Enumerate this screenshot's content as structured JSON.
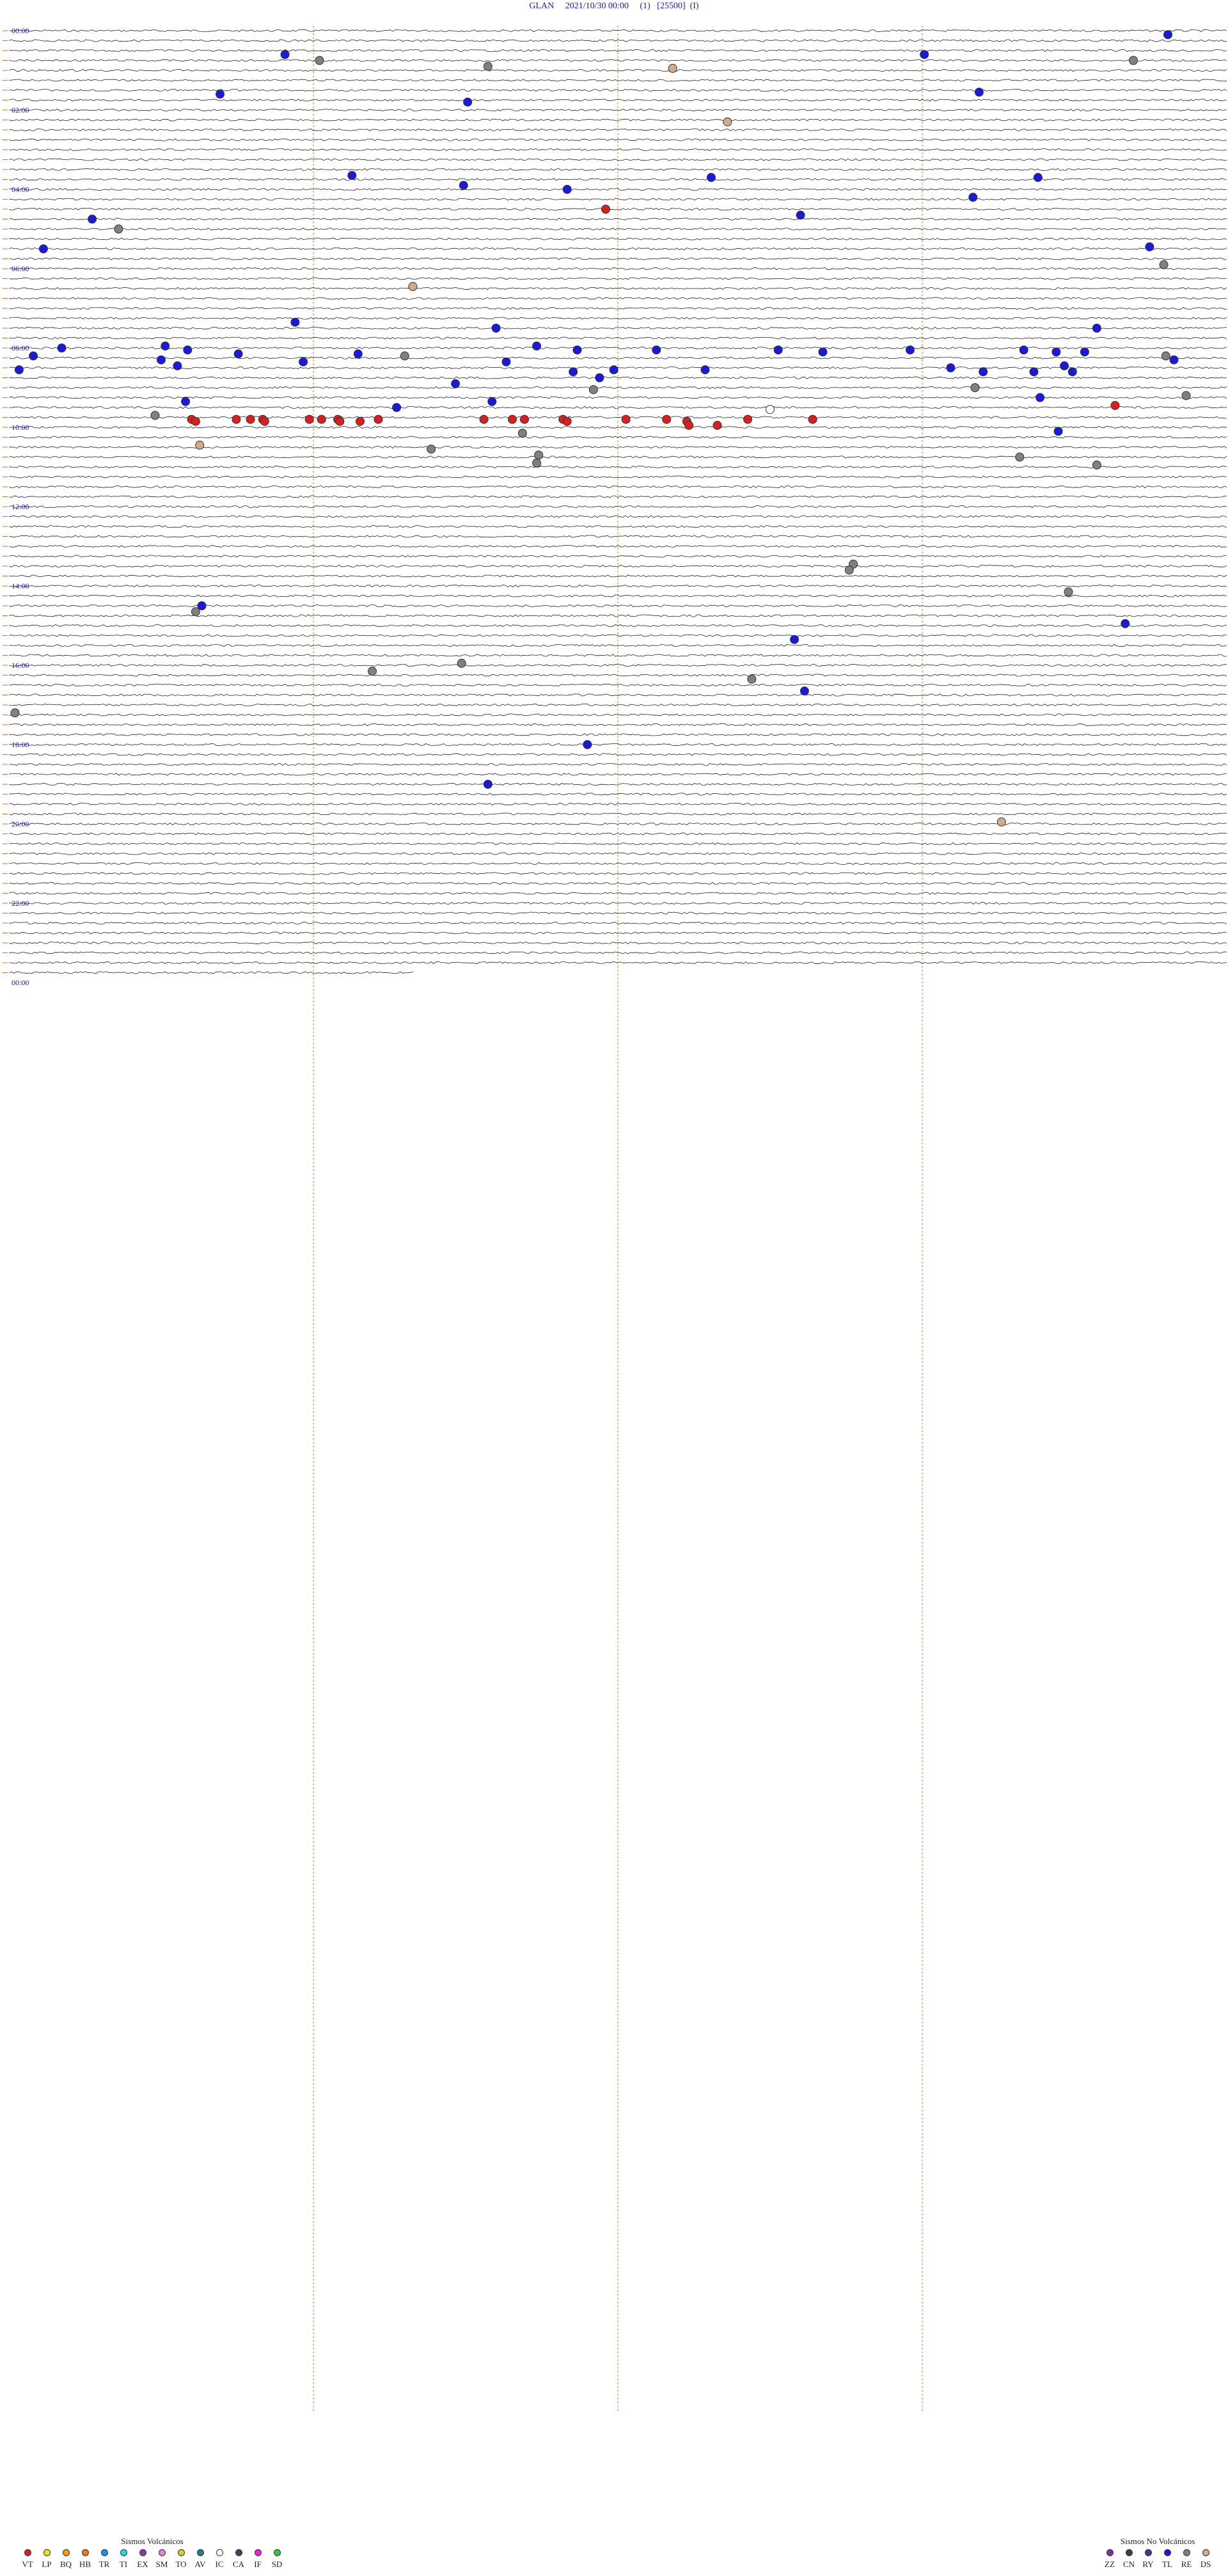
{
  "header": {
    "station": "GLAN",
    "datetime": "2021/10/30 00:00",
    "p1": "(1)",
    "gain": "[25500]",
    "p2": "(I)"
  },
  "chart_data": {
    "type": "scatter",
    "description_type": "helicorder",
    "hour_labels": [
      "00:00",
      "02:00",
      "04:00",
      "06:00",
      "08:00",
      "10:00",
      "12:00",
      "14:00",
      "16:00",
      "18:00",
      "20:00",
      "22:00",
      "00:00"
    ],
    "events": [
      {
        "hour": 0.1,
        "minute": 57.1,
        "color": "#1a1ad8"
      },
      {
        "hour": 0.6,
        "minute": 45.1,
        "color": "#1a1ad8"
      },
      {
        "hour": 0.6,
        "minute": 13.6,
        "color": "#1a1ad8"
      },
      {
        "hour": 0.75,
        "minute": 15.3,
        "color": "#808080"
      },
      {
        "hour": 0.75,
        "minute": 55.4,
        "color": "#808080"
      },
      {
        "hour": 0.9,
        "minute": 23.6,
        "color": "#808080"
      },
      {
        "hour": 0.95,
        "minute": 32.7,
        "color": "#d2aa8c"
      },
      {
        "hour": 1.6,
        "minute": 10.4,
        "color": "#1a1ad8"
      },
      {
        "hour": 1.55,
        "minute": 47.8,
        "color": "#1a1ad8"
      },
      {
        "hour": 1.8,
        "minute": 22.6,
        "color": "#1a1ad8"
      },
      {
        "hour": 2.3,
        "minute": 35.4,
        "color": "#d2aa8c"
      },
      {
        "hour": 3.65,
        "minute": 16.9,
        "color": "#1a1ad8"
      },
      {
        "hour": 3.7,
        "minute": 34.6,
        "color": "#1a1ad8"
      },
      {
        "hour": 3.7,
        "minute": 50.7,
        "color": "#1a1ad8"
      },
      {
        "hour": 3.9,
        "minute": 22.4,
        "color": "#1a1ad8"
      },
      {
        "hour": 4.0,
        "minute": 27.5,
        "color": "#1a1ad8"
      },
      {
        "hour": 4.2,
        "minute": 47.5,
        "color": "#1a1ad8"
      },
      {
        "hour": 4.5,
        "minute": 29.4,
        "color": "#d82020"
      },
      {
        "hour": 4.65,
        "minute": 39.0,
        "color": "#1a1ad8"
      },
      {
        "hour": 4.75,
        "minute": 4.1,
        "color": "#1a1ad8"
      },
      {
        "hour": 5.0,
        "minute": 5.4,
        "color": "#808080"
      },
      {
        "hour": 5.5,
        "minute": 1.7,
        "color": "#1a1ad8"
      },
      {
        "hour": 5.45,
        "minute": 56.2,
        "color": "#1a1ad8"
      },
      {
        "hour": 5.9,
        "minute": 56.9,
        "color": "#808080"
      },
      {
        "hour": 6.45,
        "minute": 19.9,
        "color": "#d2aa8c"
      },
      {
        "hour": 7.35,
        "minute": 14.1,
        "color": "#1a1ad8"
      },
      {
        "hour": 7.5,
        "minute": 24.0,
        "color": "#1a1ad8"
      },
      {
        "hour": 7.5,
        "minute": 53.6,
        "color": "#1a1ad8"
      },
      {
        "hour": 7.95,
        "minute": 7.7,
        "color": "#1a1ad8"
      },
      {
        "hour": 7.95,
        "minute": 26.0,
        "color": "#1a1ad8"
      },
      {
        "hour": 8.0,
        "minute": 2.6,
        "color": "#1a1ad8"
      },
      {
        "hour": 8.05,
        "minute": 8.8,
        "color": "#1a1ad8"
      },
      {
        "hour": 8.05,
        "minute": 28.0,
        "color": "#1a1ad8"
      },
      {
        "hour": 8.05,
        "minute": 31.9,
        "color": "#1a1ad8"
      },
      {
        "hour": 8.05,
        "minute": 37.9,
        "color": "#1a1ad8"
      },
      {
        "hour": 8.05,
        "minute": 44.4,
        "color": "#1a1ad8"
      },
      {
        "hour": 8.05,
        "minute": 50.0,
        "color": "#1a1ad8"
      },
      {
        "hour": 8.1,
        "minute": 40.1,
        "color": "#1a1ad8"
      },
      {
        "hour": 8.1,
        "minute": 51.6,
        "color": "#1a1ad8"
      },
      {
        "hour": 8.1,
        "minute": 53.0,
        "color": "#1a1ad8"
      },
      {
        "hour": 8.15,
        "minute": 11.3,
        "color": "#1a1ad8"
      },
      {
        "hour": 8.15,
        "minute": 17.2,
        "color": "#1a1ad8"
      },
      {
        "hour": 8.2,
        "minute": 1.2,
        "color": "#1a1ad8"
      },
      {
        "hour": 8.2,
        "minute": 19.5,
        "color": "#808080"
      },
      {
        "hour": 8.2,
        "minute": 57.0,
        "color": "#808080"
      },
      {
        "hour": 8.3,
        "minute": 7.5,
        "color": "#1a1ad8"
      },
      {
        "hour": 8.3,
        "minute": 57.4,
        "color": "#1a1ad8"
      },
      {
        "hour": 8.35,
        "minute": 14.5,
        "color": "#1a1ad8"
      },
      {
        "hour": 8.35,
        "minute": 24.5,
        "color": "#1a1ad8"
      },
      {
        "hour": 8.45,
        "minute": 8.3,
        "color": "#1a1ad8"
      },
      {
        "hour": 8.45,
        "minute": 52.0,
        "color": "#1a1ad8"
      },
      {
        "hour": 8.5,
        "minute": 46.4,
        "color": "#1a1ad8"
      },
      {
        "hour": 8.55,
        "minute": 0.5,
        "color": "#1a1ad8"
      },
      {
        "hour": 8.55,
        "minute": 29.8,
        "color": "#1a1ad8"
      },
      {
        "hour": 8.55,
        "minute": 34.3,
        "color": "#1a1ad8"
      },
      {
        "hour": 8.6,
        "minute": 27.8,
        "color": "#1a1ad8"
      },
      {
        "hour": 8.6,
        "minute": 48.0,
        "color": "#1a1ad8"
      },
      {
        "hour": 8.6,
        "minute": 50.5,
        "color": "#1a1ad8"
      },
      {
        "hour": 8.6,
        "minute": 52.4,
        "color": "#1a1ad8"
      },
      {
        "hour": 8.75,
        "minute": 29.1,
        "color": "#1a1ad8"
      },
      {
        "hour": 8.9,
        "minute": 22.0,
        "color": "#1a1ad8"
      },
      {
        "hour": 9.0,
        "minute": 47.6,
        "color": "#808080"
      },
      {
        "hour": 9.05,
        "minute": 28.8,
        "color": "#808080"
      },
      {
        "hour": 9.2,
        "minute": 58.0,
        "color": "#808080"
      },
      {
        "hour": 9.25,
        "minute": 50.8,
        "color": "#1a1ad8"
      },
      {
        "hour": 9.35,
        "minute": 8.7,
        "color": "#1a1ad8"
      },
      {
        "hour": 9.35,
        "minute": 23.8,
        "color": "#1a1ad8"
      },
      {
        "hour": 9.45,
        "minute": 54.5,
        "color": "#d82020"
      },
      {
        "hour": 9.5,
        "minute": 19.1,
        "color": "#1a1ad8"
      },
      {
        "hour": 9.55,
        "minute": 37.5,
        "color": "#ffffff"
      },
      {
        "hour": 9.7,
        "minute": 7.2,
        "color": "#808080"
      },
      {
        "hour": 9.8,
        "minute": 9.0,
        "color": "#d82020"
      },
      {
        "hour": 9.8,
        "minute": 11.2,
        "color": "#d82020"
      },
      {
        "hour": 9.8,
        "minute": 11.9,
        "color": "#d82020"
      },
      {
        "hour": 9.8,
        "minute": 12.5,
        "color": "#d82020"
      },
      {
        "hour": 9.8,
        "minute": 14.8,
        "color": "#d82020"
      },
      {
        "hour": 9.8,
        "minute": 15.4,
        "color": "#d82020"
      },
      {
        "hour": 9.8,
        "minute": 16.2,
        "color": "#d82020"
      },
      {
        "hour": 9.8,
        "minute": 18.2,
        "color": "#d82020"
      },
      {
        "hour": 9.8,
        "minute": 23.4,
        "color": "#d82020"
      },
      {
        "hour": 9.8,
        "minute": 24.8,
        "color": "#d82020"
      },
      {
        "hour": 9.8,
        "minute": 25.4,
        "color": "#d82020"
      },
      {
        "hour": 9.8,
        "minute": 27.3,
        "color": "#d82020"
      },
      {
        "hour": 9.8,
        "minute": 30.4,
        "color": "#d82020"
      },
      {
        "hour": 9.8,
        "minute": 32.4,
        "color": "#d82020"
      },
      {
        "hour": 9.8,
        "minute": 36.4,
        "color": "#d82020"
      },
      {
        "hour": 9.8,
        "minute": 39.6,
        "color": "#d82020"
      },
      {
        "hour": 9.85,
        "minute": 9.2,
        "color": "#d82020"
      },
      {
        "hour": 9.85,
        "minute": 16.3,
        "color": "#d82020"
      },
      {
        "hour": 9.85,
        "minute": 17.3,
        "color": "#d82020"
      },
      {
        "hour": 9.85,
        "minute": 27.5,
        "color": "#d82020"
      },
      {
        "hour": 9.85,
        "minute": 33.4,
        "color": "#d82020"
      },
      {
        "hour": 9.85,
        "minute": 12.6,
        "color": "#d82020"
      },
      {
        "hour": 9.95,
        "minute": 33.5,
        "color": "#d82020"
      },
      {
        "hour": 9.95,
        "minute": 34.9,
        "color": "#d82020"
      },
      {
        "hour": 10.15,
        "minute": 25.3,
        "color": "#808080"
      },
      {
        "hour": 10.1,
        "minute": 51.7,
        "color": "#1a1ad8"
      },
      {
        "hour": 10.45,
        "minute": 9.4,
        "color": "#d2aa8c"
      },
      {
        "hour": 10.55,
        "minute": 20.8,
        "color": "#808080"
      },
      {
        "hour": 10.7,
        "minute": 26.1,
        "color": "#808080"
      },
      {
        "hour": 10.75,
        "minute": 49.8,
        "color": "#808080"
      },
      {
        "hour": 10.9,
        "minute": 26.0,
        "color": "#808080"
      },
      {
        "hour": 10.95,
        "minute": 53.6,
        "color": "#808080"
      },
      {
        "hour": 13.45,
        "minute": 41.6,
        "color": "#808080"
      },
      {
        "hour": 13.6,
        "minute": 41.4,
        "color": "#808080"
      },
      {
        "hour": 14.15,
        "minute": 52.2,
        "color": "#808080"
      },
      {
        "hour": 14.5,
        "minute": 9.5,
        "color": "#1a1ad8"
      },
      {
        "hour": 14.65,
        "minute": 9.2,
        "color": "#808080"
      },
      {
        "hour": 14.95,
        "minute": 55.0,
        "color": "#1a1ad8"
      },
      {
        "hour": 15.35,
        "minute": 38.7,
        "color": "#1a1ad8"
      },
      {
        "hour": 15.95,
        "minute": 22.3,
        "color": "#808080"
      },
      {
        "hour": 16.15,
        "minute": 17.9,
        "color": "#808080"
      },
      {
        "hour": 16.35,
        "minute": 36.6,
        "color": "#808080"
      },
      {
        "hour": 16.65,
        "minute": 39.2,
        "color": "#1a1ad8"
      },
      {
        "hour": 17.2,
        "minute": 0.3,
        "color": "#808080"
      },
      {
        "hour": 18.0,
        "minute": 28.5,
        "color": "#1a1ad8"
      },
      {
        "hour": 19.0,
        "minute": 23.6,
        "color": "#1a1ad8"
      },
      {
        "hour": 19.95,
        "minute": 48.9,
        "color": "#d2aa8c"
      }
    ]
  },
  "legend_left": {
    "title": "Sismos Volcánicos",
    "items": [
      {
        "code": "VT",
        "color": "#d82020"
      },
      {
        "code": "LP",
        "color": "#f0e020"
      },
      {
        "code": "BQ",
        "color": "#f5a000"
      },
      {
        "code": "HB",
        "color": "#f07820"
      },
      {
        "code": "TR",
        "color": "#2090f0"
      },
      {
        "code": "TI",
        "color": "#20d8e0"
      },
      {
        "code": "EX",
        "color": "#8a3ab0"
      },
      {
        "code": "SM",
        "color": "#e080e0"
      },
      {
        "code": "TO",
        "color": "#d8d020"
      },
      {
        "code": "AV",
        "color": "#208080"
      },
      {
        "code": "IC",
        "color": "#ffffff"
      },
      {
        "code": "CA",
        "color": "#404060"
      },
      {
        "code": "IF",
        "color": "#f020d0"
      },
      {
        "code": "SD",
        "color": "#40c040"
      }
    ]
  },
  "legend_right": {
    "title": "Sismos No Volcánicos",
    "items": [
      {
        "code": "ZZ",
        "color": "#8030a0"
      },
      {
        "code": "CN",
        "color": "#404040"
      },
      {
        "code": "RY",
        "color": "#503080"
      },
      {
        "code": "TL",
        "color": "#1a1ad8"
      },
      {
        "code": "RE",
        "color": "#808080"
      },
      {
        "code": "DS",
        "color": "#d2aa8c"
      }
    ]
  }
}
